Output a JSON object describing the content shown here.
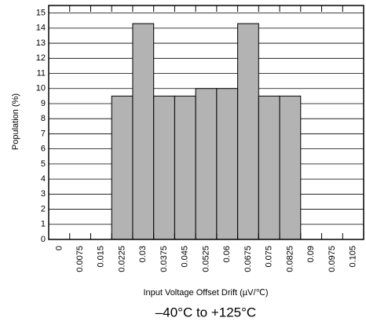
{
  "chart_data": {
    "type": "bar",
    "x_label": "Input Voltage Offset Drift (µV/℃)",
    "y_label": "Population (%)",
    "annotation": "–40°C to +125°C",
    "categories": [
      "0",
      "0.0075",
      "0.015",
      "0.0225",
      "0.03",
      "0.0375",
      "0.045",
      "0.0525",
      "0.06",
      "0.0675",
      "0.075",
      "0.0825",
      "0.09",
      "0.0975",
      "0.105"
    ],
    "values": [
      0,
      0,
      0,
      9.5,
      14.3,
      9.5,
      9.5,
      10,
      10,
      14.3,
      9.5,
      9.5,
      0,
      0,
      0
    ],
    "color": "#b3b3b3",
    "ylim": [
      0,
      15.5
    ],
    "yticks": [
      0,
      1,
      2,
      3,
      4,
      5,
      6,
      7,
      8,
      9,
      10,
      11,
      12,
      13,
      14,
      15
    ],
    "grid": true
  }
}
